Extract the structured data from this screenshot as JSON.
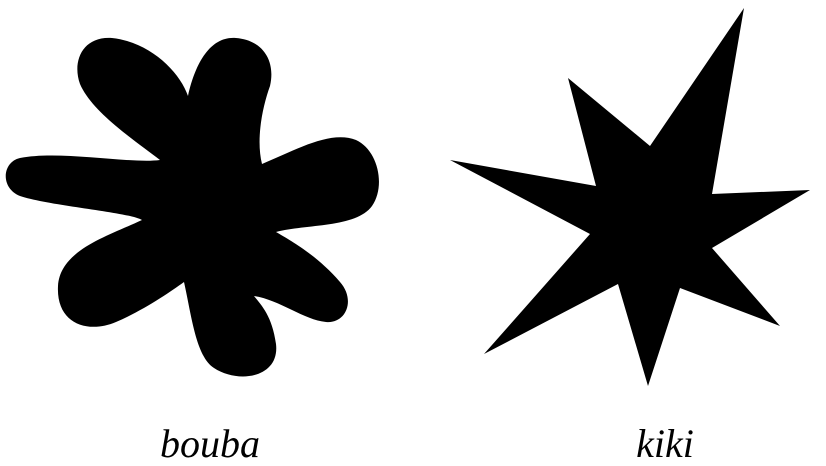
{
  "figure": {
    "left_label": "bouba",
    "right_label": "kiki",
    "shape_color": "#000000",
    "background_color": "#ffffff",
    "left_shape_icon": "blob-icon",
    "right_shape_icon": "spiky-star-icon"
  }
}
